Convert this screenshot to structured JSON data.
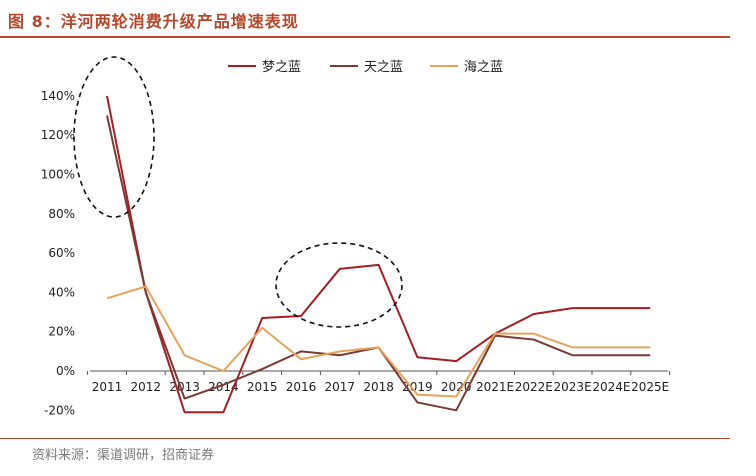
{
  "header": {
    "title": "图 8：洋河两轮消费升级产品增速表现"
  },
  "footer": {
    "source": "资料来源：渠道调研，招商证券"
  },
  "chart_data": {
    "type": "line",
    "categories": [
      "2011",
      "2012",
      "2013",
      "2014",
      "2015",
      "2016",
      "2017",
      "2018",
      "2019",
      "2020",
      "2021E",
      "2022E",
      "2023E",
      "2024E",
      "2025E"
    ],
    "ylim": [
      -0.2,
      1.4
    ],
    "yticks": [
      "-20%",
      "0%",
      "20%",
      "40%",
      "60%",
      "80%",
      "100%",
      "120%",
      "140%"
    ],
    "legend_position": "top",
    "series": [
      {
        "name": "梦之蓝",
        "color": "#a31f24",
        "values": [
          1.4,
          0.4,
          -0.21,
          -0.21,
          0.27,
          0.28,
          0.52,
          0.54,
          0.07,
          0.05,
          0.19,
          0.29,
          0.32,
          0.32,
          0.32
        ]
      },
      {
        "name": "天之蓝",
        "color": "#7b3a33",
        "values": [
          1.3,
          0.4,
          -0.14,
          -0.07,
          0.01,
          0.1,
          0.08,
          0.12,
          -0.16,
          -0.2,
          0.18,
          0.16,
          0.08,
          0.08,
          0.08
        ]
      },
      {
        "name": "海之蓝",
        "color": "#e8a35a",
        "values": [
          0.37,
          0.43,
          0.08,
          0.0,
          0.22,
          0.06,
          0.1,
          0.12,
          -0.12,
          -0.13,
          0.19,
          0.19,
          0.12,
          0.12,
          0.12
        ]
      }
    ],
    "annotations": [
      {
        "type": "dashed-ellipse",
        "around": "2011"
      },
      {
        "type": "dashed-ellipse",
        "around": "2016-2018"
      }
    ]
  }
}
